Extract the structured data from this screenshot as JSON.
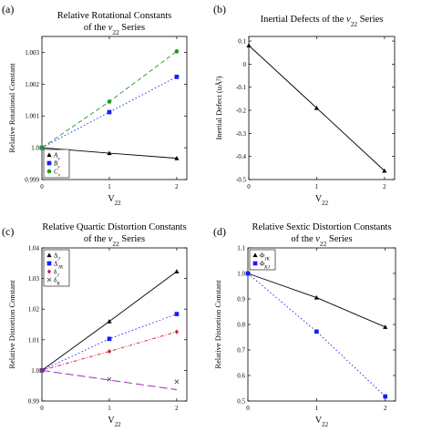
{
  "colors": {
    "black": "#000000",
    "blue": "#1a1aff",
    "green": "#1f9a1f",
    "red": "#e0182a",
    "magenta": "#a02ab8",
    "gray": "#555555"
  },
  "chart_data": [
    {
      "panel_label": "(a)",
      "type": "line",
      "title_line1": "Relative Rotational Constants",
      "title_line2": "of the ν22 Series",
      "xlabel": "V22",
      "ylabel": "Relative Rotational Constant",
      "xlim": [
        0,
        2.15
      ],
      "ylim": [
        0.999,
        1.0035
      ],
      "xticks": [
        0,
        1,
        2
      ],
      "xtick_labels": [
        "0",
        "1",
        "2"
      ],
      "yticks": [
        0.999,
        1.0,
        1.001,
        1.002,
        1.003
      ],
      "ytick_labels": [
        "0.999",
        "1.0",
        "1.001",
        "1.002",
        "1.003"
      ],
      "legend_position": "bottom-left",
      "series": [
        {
          "name": "Av",
          "color": "black",
          "marker": "triangle",
          "dash": "solid",
          "x": [
            0,
            1,
            2
          ],
          "y": [
            1.0,
            0.99983,
            0.99967
          ]
        },
        {
          "name": "Bv",
          "color": "blue",
          "marker": "square",
          "dash": "dotted",
          "x": [
            0,
            1,
            2
          ],
          "y": [
            1.0,
            1.00112,
            1.00223
          ]
        },
        {
          "name": "Cv",
          "color": "green",
          "marker": "circle",
          "dash": "dashed",
          "x": [
            0,
            1,
            2
          ],
          "y": [
            1.0,
            1.00145,
            1.00303
          ]
        }
      ]
    },
    {
      "panel_label": "(b)",
      "type": "line",
      "title_line1": "Inertial Defects of the ν22 Series",
      "title_line2": "",
      "xlabel": "V22",
      "ylabel": "Inertial Defect (uÅ²)",
      "xlim": [
        0,
        2.15
      ],
      "ylim": [
        -0.5,
        0.12
      ],
      "xticks": [
        0,
        1,
        2
      ],
      "xtick_labels": [
        "0",
        "1",
        "2"
      ],
      "yticks": [
        -0.5,
        -0.4,
        -0.3,
        -0.2,
        -0.1,
        0,
        0.1
      ],
      "ytick_labels": [
        "-0.5",
        "-0.4",
        "-0.3",
        "-0.2",
        "-0.1",
        "0",
        "0.1"
      ],
      "legend_position": "none",
      "series": [
        {
          "name": "",
          "color": "black",
          "marker": "triangle",
          "dash": "solid",
          "x": [
            0,
            1,
            2
          ],
          "y": [
            0.081,
            -0.19,
            -0.462
          ]
        }
      ]
    },
    {
      "panel_label": "(c)",
      "type": "line",
      "title_line1": "Relative Quartic Distortion Constants",
      "title_line2": "of the ν22 Series",
      "xlabel": "V22",
      "ylabel": "Relative Distortion Constant",
      "xlim": [
        0,
        2.15
      ],
      "ylim": [
        0.99,
        1.04
      ],
      "xticks": [
        0,
        1,
        2
      ],
      "xtick_labels": [
        "0",
        "1",
        "2"
      ],
      "yticks": [
        0.99,
        1.0,
        1.01,
        1.02,
        1.03,
        1.04
      ],
      "ytick_labels": [
        "0.99",
        "1.0",
        "1.01",
        "1.02",
        "1.03",
        "1.04"
      ],
      "legend_position": "top-left",
      "series": [
        {
          "name": "ΔJ",
          "color": "black",
          "marker": "triangle",
          "dash": "solid",
          "x": [
            0,
            1,
            2
          ],
          "y": [
            1.0,
            1.016,
            1.0323
          ]
        },
        {
          "name": "ΔJK",
          "color": "blue",
          "marker": "square",
          "dash": "dotted",
          "x": [
            0,
            1,
            2
          ],
          "y": [
            1.0,
            1.0103,
            1.0184
          ]
        },
        {
          "name": "δJ",
          "color": "red",
          "marker": "diamond",
          "dash": "dashdot",
          "x": [
            0,
            1,
            2
          ],
          "y": [
            1.0,
            1.0062,
            1.0126
          ]
        },
        {
          "name": "δK",
          "color": "gray",
          "marker": "cross",
          "dash": "none",
          "x": [
            0,
            1,
            2
          ],
          "y": [
            1.0,
            0.9971,
            0.9963
          ]
        }
      ],
      "trend_lines": [
        {
          "color": "magenta",
          "dash": "longdash",
          "x": [
            0,
            2
          ],
          "y": [
            1.0,
            0.9937
          ]
        }
      ]
    },
    {
      "panel_label": "(d)",
      "type": "line",
      "title_line1": "Relative Sextic Distortion Constants",
      "title_line2": "of the ν22 Series",
      "xlabel": "V22",
      "ylabel": "Relative Distortion Constant",
      "xlim": [
        0,
        2.15
      ],
      "ylim": [
        0.5,
        1.1
      ],
      "xticks": [
        0,
        1,
        2
      ],
      "xtick_labels": [
        "0",
        "1",
        "2"
      ],
      "yticks": [
        0.5,
        0.6,
        0.7,
        0.8,
        0.9,
        1.0,
        1.1
      ],
      "ytick_labels": [
        "0.5",
        "0.6",
        "0.7",
        "0.8",
        "0.9",
        "1.0",
        "1.1"
      ],
      "legend_position": "top-left",
      "series": [
        {
          "name": "ΦJK",
          "color": "black",
          "marker": "triangle",
          "dash": "solid",
          "x": [
            0,
            1,
            2
          ],
          "y": [
            1.0,
            0.905,
            0.79
          ]
        },
        {
          "name": "ΦKJ",
          "color": "blue",
          "marker": "square",
          "dash": "dotted",
          "x": [
            0,
            1,
            2
          ],
          "y": [
            1.0,
            0.772,
            0.518
          ]
        }
      ]
    }
  ]
}
